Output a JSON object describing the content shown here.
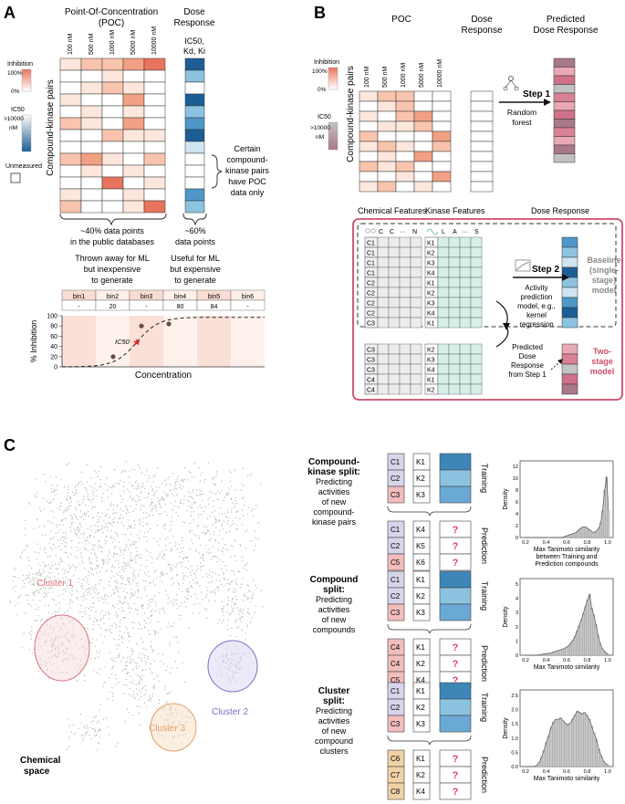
{
  "panel_a": {
    "letter": "A",
    "poc_title_line1": "Point-Of-Concentration",
    "poc_title_line2": "(POC)",
    "dr_title_line1": "Dose",
    "dr_title_line2": "Response",
    "concentrations": [
      "100 nM",
      "500 nM",
      "1000 nM",
      "5000 nM",
      "10000 nM"
    ],
    "dr_sublabel_line1": "IC50,",
    "dr_sublabel_line2": "Kd, Ki",
    "ylabel": "Compound-kinase pairs",
    "legend_inhibition": "Inhibition",
    "legend_100": "100%",
    "legend_0": "0%",
    "legend_ic50": "IC50",
    "legend_gt": ">10000",
    "legend_nm": "nM",
    "legend_unmeasured": "Unmeasured",
    "annotation": [
      "Certain",
      "compound-",
      "kinase pairs",
      "have POC",
      "data only"
    ],
    "poc_note": [
      "~40% data points",
      "in the public databases",
      "Thrown away for ML",
      "but inexpensive",
      "to generate"
    ],
    "dr_note": [
      "~60%",
      "data points",
      "Useful for ML",
      "but expensive",
      "to generate"
    ],
    "bins": [
      "bin1",
      "bin2",
      "bin3",
      "bin4",
      "bin5",
      "bin6"
    ],
    "bin_values": [
      "-",
      "20",
      "-",
      "80",
      "84",
      "-"
    ],
    "curve_ylabel": "% Inhibition",
    "curve_xlabel": "Concentration",
    "curve_yticks": [
      "0",
      "20",
      "40",
      "60",
      "80",
      "100"
    ],
    "ic50_label": "IC50"
  },
  "panel_b": {
    "letter": "B",
    "poc_title": "POC",
    "dr_title_line1": "Dose",
    "dr_title_line2": "Response",
    "pred_title_line1": "Predicted",
    "pred_title_line2": "Dose Response",
    "concentrations": [
      "100 nM",
      "500 nM",
      "1000 nM",
      "5000 nM",
      "10000 nM"
    ],
    "ylabel": "Compound-kinase pairs",
    "legend_inhibition": "Inhibition",
    "legend_100": "100%",
    "legend_0": "0%",
    "legend_ic50": "IC50",
    "legend_gt": ">10000",
    "legend_nm": "nM",
    "step1": "Step 1",
    "step1_model": [
      "Random",
      "forest"
    ],
    "chem_title": "Chemical Features",
    "kinase_title": "Kinase Features",
    "dose_title": "Dose Response",
    "chem_header": [
      "C",
      "C",
      "···",
      "N"
    ],
    "kinase_header": [
      "L",
      "A",
      "···",
      "S"
    ],
    "train_compounds": [
      "C1",
      "C1",
      "C1",
      "C1",
      "C2",
      "C2",
      "C2",
      "C2",
      "C3"
    ],
    "train_kinases": [
      "K1",
      "K2",
      "K3",
      "K4",
      "K1",
      "K2",
      "K3",
      "K4",
      "K1"
    ],
    "stage2_compounds": [
      "C3",
      "C3",
      "C3",
      "C4",
      "C4"
    ],
    "stage2_kinases": [
      "K2",
      "K3",
      "K4",
      "K1",
      "K2"
    ],
    "step2": "Step 2",
    "step2_model": [
      "Activity",
      "prediction",
      "model, e.g.,",
      "kernel",
      "regression"
    ],
    "pred_note": [
      "Predicted",
      "Dose",
      "Response",
      "from Step 1"
    ],
    "baseline_label": [
      "Baseline",
      "(single-",
      "stage)",
      "model"
    ],
    "twostage_label": [
      "Two-",
      "stage",
      "model"
    ]
  },
  "panel_c": {
    "letter": "C",
    "clusters": [
      "Cluster 1",
      "Cluster 2",
      "Cluster 3"
    ],
    "space_label": [
      "Chemical",
      "space"
    ],
    "splits": [
      {
        "title": [
          "Compound-",
          "kinase split:"
        ],
        "desc": [
          "Predicting",
          "activities",
          "of new",
          "compound-",
          "kinase pairs"
        ],
        "train_c": [
          "C1",
          "C2",
          "C3"
        ],
        "train_k": [
          "K1",
          "K2",
          "K3"
        ],
        "pred_c": [
          "C1",
          "C2",
          "C5"
        ],
        "pred_k": [
          "K4",
          "K5",
          "K6"
        ],
        "hist_xlabel": [
          "Max Tanimoto similarity",
          "between Training and",
          "Prediction compounds"
        ]
      },
      {
        "title": [
          "Compound",
          "split:"
        ],
        "desc": [
          "Predicting",
          "activities",
          "of new",
          "compounds"
        ],
        "train_c": [
          "C1",
          "C2",
          "C3"
        ],
        "train_k": [
          "K1",
          "K2",
          "K3"
        ],
        "pred_c": [
          "C4",
          "C4",
          "C5"
        ],
        "pred_k": [
          "K1",
          "K2",
          "K4"
        ],
        "hist_xlabel": [
          "Max Tanimoto similarity"
        ]
      },
      {
        "title": [
          "Cluster",
          "split:"
        ],
        "desc": [
          "Predicting",
          "activities",
          "of new",
          "compound",
          "clusters"
        ],
        "train_c": [
          "C1",
          "C2",
          "C3"
        ],
        "train_k": [
          "K1",
          "K2",
          "K3"
        ],
        "pred_c": [
          "C6",
          "C7",
          "C8"
        ],
        "pred_k": [
          "K1",
          "K2",
          "K4"
        ],
        "hist_xlabel": [
          "Max Tanimoto similarity"
        ]
      }
    ],
    "training_label": "Training",
    "prediction_label": "Prediction",
    "question": "?",
    "density_label": "Density",
    "xticks": [
      "0.2",
      "0.4",
      "0.6",
      "0.8",
      "1.0"
    ],
    "hist_yticks": [
      [
        "0",
        "2",
        "4",
        "6",
        "8",
        "10",
        "12"
      ],
      [
        "0",
        "1",
        "2",
        "3",
        "4",
        "5"
      ],
      [
        "0.0",
        "0.5",
        "1.0",
        "1.5",
        "2.0",
        "2.5"
      ]
    ]
  },
  "colors": {
    "poc_scale": [
      "#ffffff",
      "#fde7dc",
      "#f9c4ad",
      "#f2a083",
      "#e9745d"
    ],
    "ic50_scale": [
      "#ffffff",
      "#cfe5f2",
      "#8cc3e0",
      "#4e97c7",
      "#1c5e94"
    ],
    "pred_scale": [
      "#c2c2c2",
      "#e8a8b4",
      "#d98294",
      "#d0718a",
      "#a9788a"
    ],
    "frame_red": "#cc4d68",
    "cluster1": "#d9707a",
    "cluster2": "#7c6fc0",
    "cluster3": "#e2a068",
    "compound_purple": "#d7d4ec",
    "compound_red": "#f2bdbd",
    "compound_tan": "#f1d2a8",
    "kinase_green": "#d6efe7",
    "question_red": "#e0426a"
  }
}
